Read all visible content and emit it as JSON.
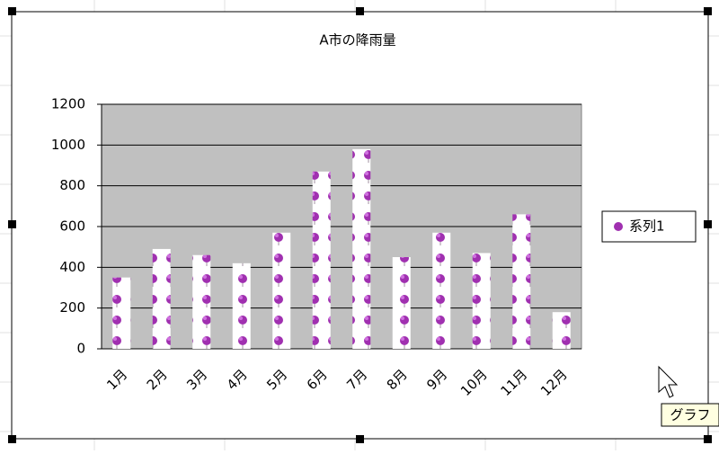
{
  "chart_data": {
    "type": "bar",
    "title": "A市の降雨量",
    "categories": [
      "1月",
      "2月",
      "3月",
      "4月",
      "5月",
      "6月",
      "7月",
      "8月",
      "9月",
      "10月",
      "11月",
      "12月"
    ],
    "series": [
      {
        "name": "系列1",
        "color": "#a030b0",
        "values": [
          350,
          490,
          460,
          420,
          570,
          870,
          980,
          450,
          570,
          470,
          660,
          180
        ]
      }
    ],
    "ylim": [
      0,
      1200
    ],
    "yticks": [
      0,
      200,
      400,
      600,
      800,
      1000,
      1200
    ],
    "grid": true,
    "legend": "right"
  },
  "ui": {
    "tooltip": "グラフ"
  }
}
